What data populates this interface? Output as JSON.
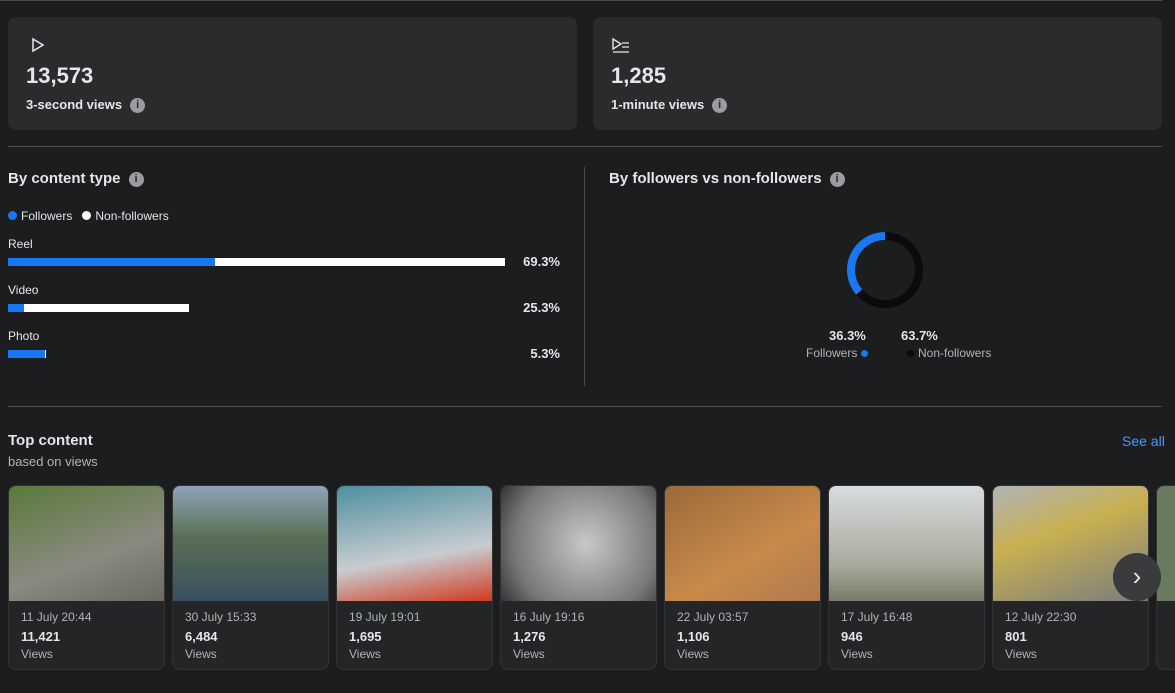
{
  "stats": [
    {
      "value": "13,573",
      "label": "3-second views"
    },
    {
      "value": "1,285",
      "label": "1-minute views"
    }
  ],
  "content_type": {
    "title": "By content type",
    "legend": [
      "Followers",
      "Non-followers"
    ],
    "rows": [
      {
        "name": "Reel",
        "value": 69.3,
        "value_label": "69.3%",
        "followers_share": 41.6
      },
      {
        "name": "Video",
        "value": 25.3,
        "value_label": "25.3%",
        "followers_share": 8.8
      },
      {
        "name": "Photo",
        "value": 5.3,
        "value_label": "5.3%",
        "followers_share": 97
      }
    ]
  },
  "followers": {
    "title": "By followers vs non-followers",
    "segments": [
      {
        "name": "Followers",
        "value": 36.3,
        "value_label": "36.3%",
        "color": "#1877f2"
      },
      {
        "name": "Non-followers",
        "value": 63.7,
        "value_label": "63.7%",
        "color": "#0b0b0b"
      }
    ]
  },
  "top_content": {
    "title": "Top content",
    "subtitle": "based on views",
    "see_all": "See all",
    "views_label": "Views",
    "items": [
      {
        "date": "11 July 20:44",
        "views": "11,421"
      },
      {
        "date": "30 July 15:33",
        "views": "6,484"
      },
      {
        "date": "19 July 19:01",
        "views": "1,695"
      },
      {
        "date": "16 July 19:16",
        "views": "1,276"
      },
      {
        "date": "22 July 03:57",
        "views": "1,106"
      },
      {
        "date": "17 July 16:48",
        "views": "946"
      },
      {
        "date": "12 July 22:30",
        "views": "801"
      }
    ]
  }
}
